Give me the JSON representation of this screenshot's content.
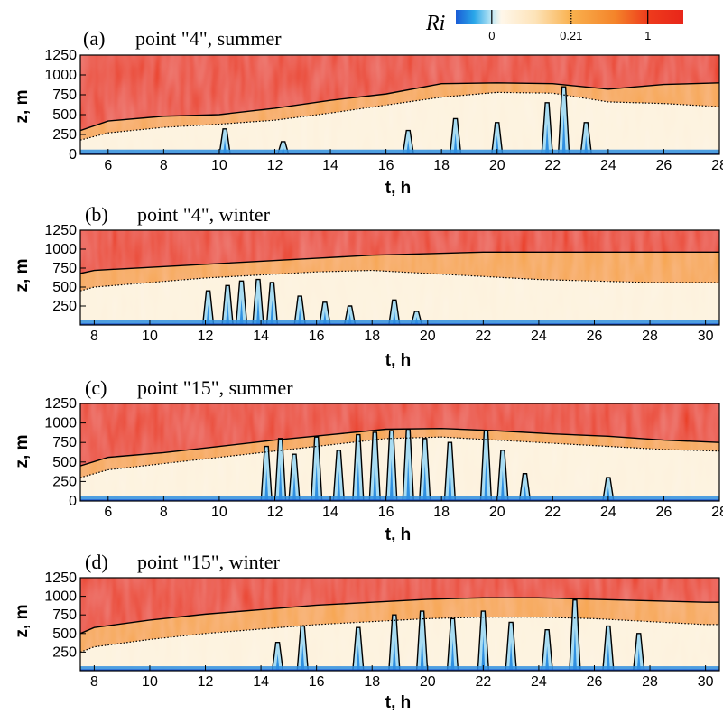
{
  "colorbar": {
    "title": "Ri",
    "ticks": [
      {
        "label": "0",
        "value": 0,
        "pos": 0.158,
        "style": "solid"
      },
      {
        "label": "0.21",
        "value": 0.21,
        "pos": 0.507,
        "style": "dotted"
      },
      {
        "label": "1",
        "value": 1,
        "pos": 0.844,
        "style": "solid"
      }
    ],
    "stops": [
      {
        "offset": 0.0,
        "color": "#1a5cd6"
      },
      {
        "offset": 0.08,
        "color": "#29a6e8"
      },
      {
        "offset": 0.158,
        "color": "#bfe8f5"
      },
      {
        "offset": 0.2,
        "color": "#fff7ea"
      },
      {
        "offset": 0.35,
        "color": "#fde3b8"
      },
      {
        "offset": 0.507,
        "color": "#f9b14e"
      },
      {
        "offset": 0.7,
        "color": "#f4842a"
      },
      {
        "offset": 0.844,
        "color": "#ee3b1c"
      },
      {
        "offset": 1.0,
        "color": "#e8261a"
      }
    ]
  },
  "colors": {
    "stable": "#ea3a1c",
    "transition": "#f7a44a",
    "mixed": "#fdf2dd",
    "unstable_light": "#a8dcf2",
    "unstable_dark": "#2f8fe0",
    "surface": "#1749c9"
  },
  "chart_data": [
    {
      "type": "heatmap",
      "panel": "(a)",
      "title": "point \"4\", summer",
      "xlabel": "t, h",
      "ylabel": "z, m",
      "xlim": [
        5,
        28
      ],
      "ylim": [
        0,
        1250
      ],
      "xticks": [
        6,
        8,
        10,
        12,
        14,
        16,
        18,
        20,
        22,
        24,
        26,
        28
      ],
      "yticks": [
        0,
        250,
        500,
        750,
        1000,
        1250
      ],
      "boundary_t": [
        5,
        6,
        8,
        10,
        12,
        14,
        16,
        18,
        20,
        22,
        24,
        26,
        28
      ],
      "stable_layer_base_z": [
        300,
        420,
        480,
        500,
        580,
        680,
        760,
        890,
        900,
        890,
        820,
        880,
        900
      ],
      "mixed_layer_top_z": [
        180,
        270,
        340,
        380,
        430,
        520,
        620,
        720,
        780,
        770,
        660,
        640,
        600
      ],
      "plumes": [
        {
          "t": 10.2,
          "z_top": 320
        },
        {
          "t": 12.3,
          "z_top": 160
        },
        {
          "t": 16.8,
          "z_top": 300
        },
        {
          "t": 18.5,
          "z_top": 450
        },
        {
          "t": 20.0,
          "z_top": 400
        },
        {
          "t": 21.8,
          "z_top": 650
        },
        {
          "t": 22.4,
          "z_top": 850
        },
        {
          "t": 23.2,
          "z_top": 400
        }
      ]
    },
    {
      "type": "heatmap",
      "panel": "(b)",
      "title": "point \"4\", winter",
      "xlabel": "t, h",
      "ylabel": "z, m",
      "xlim": [
        7.5,
        30.5
      ],
      "ylim": [
        0,
        1250
      ],
      "xticks": [
        8,
        10,
        12,
        14,
        16,
        18,
        20,
        22,
        24,
        26,
        28,
        30
      ],
      "yticks": [
        250,
        500,
        750,
        1000,
        1250
      ],
      "boundary_t": [
        7.5,
        8,
        10,
        12,
        14,
        16,
        18,
        20,
        22,
        24,
        26,
        28,
        30,
        30.5
      ],
      "stable_layer_base_z": [
        680,
        720,
        760,
        800,
        840,
        880,
        920,
        940,
        960,
        960,
        960,
        960,
        960,
        960
      ],
      "mixed_layer_top_z": [
        450,
        500,
        560,
        620,
        660,
        700,
        720,
        680,
        640,
        600,
        580,
        560,
        560,
        560
      ],
      "plumes": [
        {
          "t": 12.1,
          "z_top": 450
        },
        {
          "t": 12.8,
          "z_top": 520
        },
        {
          "t": 13.3,
          "z_top": 580
        },
        {
          "t": 13.9,
          "z_top": 600
        },
        {
          "t": 14.4,
          "z_top": 560
        },
        {
          "t": 15.4,
          "z_top": 380
        },
        {
          "t": 16.3,
          "z_top": 300
        },
        {
          "t": 17.2,
          "z_top": 250
        },
        {
          "t": 18.8,
          "z_top": 330
        },
        {
          "t": 19.6,
          "z_top": 180
        }
      ]
    },
    {
      "type": "heatmap",
      "panel": "(c)",
      "title": "point \"15\", summer",
      "xlabel": "t, h",
      "ylabel": "z, m",
      "xlim": [
        5,
        28
      ],
      "ylim": [
        0,
        1250
      ],
      "xticks": [
        6,
        8,
        10,
        12,
        14,
        16,
        18,
        20,
        22,
        24,
        26,
        28
      ],
      "yticks": [
        0,
        250,
        500,
        750,
        1000,
        1250
      ],
      "boundary_t": [
        5,
        6,
        8,
        10,
        12,
        14,
        16,
        18,
        20,
        22,
        24,
        26,
        28
      ],
      "stable_layer_base_z": [
        450,
        560,
        620,
        700,
        780,
        850,
        920,
        930,
        900,
        860,
        830,
        780,
        750
      ],
      "mixed_layer_top_z": [
        300,
        400,
        480,
        560,
        640,
        720,
        800,
        820,
        780,
        740,
        700,
        660,
        640
      ],
      "plumes": [
        {
          "t": 11.7,
          "z_top": 700
        },
        {
          "t": 12.2,
          "z_top": 800
        },
        {
          "t": 12.7,
          "z_top": 600
        },
        {
          "t": 13.5,
          "z_top": 820
        },
        {
          "t": 14.3,
          "z_top": 650
        },
        {
          "t": 15.0,
          "z_top": 850
        },
        {
          "t": 15.6,
          "z_top": 880
        },
        {
          "t": 16.2,
          "z_top": 900
        },
        {
          "t": 16.8,
          "z_top": 920
        },
        {
          "t": 17.4,
          "z_top": 800
        },
        {
          "t": 18.3,
          "z_top": 750
        },
        {
          "t": 19.6,
          "z_top": 900
        },
        {
          "t": 20.2,
          "z_top": 650
        },
        {
          "t": 21.0,
          "z_top": 350
        },
        {
          "t": 24.0,
          "z_top": 300
        }
      ]
    },
    {
      "type": "heatmap",
      "panel": "(d)",
      "title": "point \"15\", winter",
      "xlabel": "t, h",
      "ylabel": "z, m",
      "xlim": [
        7.5,
        30.5
      ],
      "ylim": [
        0,
        1250
      ],
      "xticks": [
        8,
        10,
        12,
        14,
        16,
        18,
        20,
        22,
        24,
        26,
        28,
        30
      ],
      "yticks": [
        250,
        500,
        750,
        1000,
        1250
      ],
      "boundary_t": [
        7.5,
        8,
        10,
        12,
        14,
        16,
        18,
        20,
        22,
        24,
        26,
        28,
        30,
        30.5
      ],
      "stable_layer_base_z": [
        500,
        580,
        680,
        760,
        820,
        880,
        920,
        960,
        980,
        980,
        960,
        940,
        920,
        920
      ],
      "mixed_layer_top_z": [
        250,
        320,
        420,
        500,
        560,
        620,
        660,
        700,
        720,
        720,
        700,
        660,
        620,
        620
      ],
      "plumes": [
        {
          "t": 14.6,
          "z_top": 380
        },
        {
          "t": 15.5,
          "z_top": 600
        },
        {
          "t": 17.5,
          "z_top": 580
        },
        {
          "t": 18.8,
          "z_top": 750
        },
        {
          "t": 19.8,
          "z_top": 800
        },
        {
          "t": 20.9,
          "z_top": 700
        },
        {
          "t": 22.0,
          "z_top": 800
        },
        {
          "t": 23.0,
          "z_top": 650
        },
        {
          "t": 24.3,
          "z_top": 550
        },
        {
          "t": 25.3,
          "z_top": 950
        },
        {
          "t": 26.5,
          "z_top": 600
        },
        {
          "t": 27.6,
          "z_top": 500
        }
      ]
    }
  ]
}
